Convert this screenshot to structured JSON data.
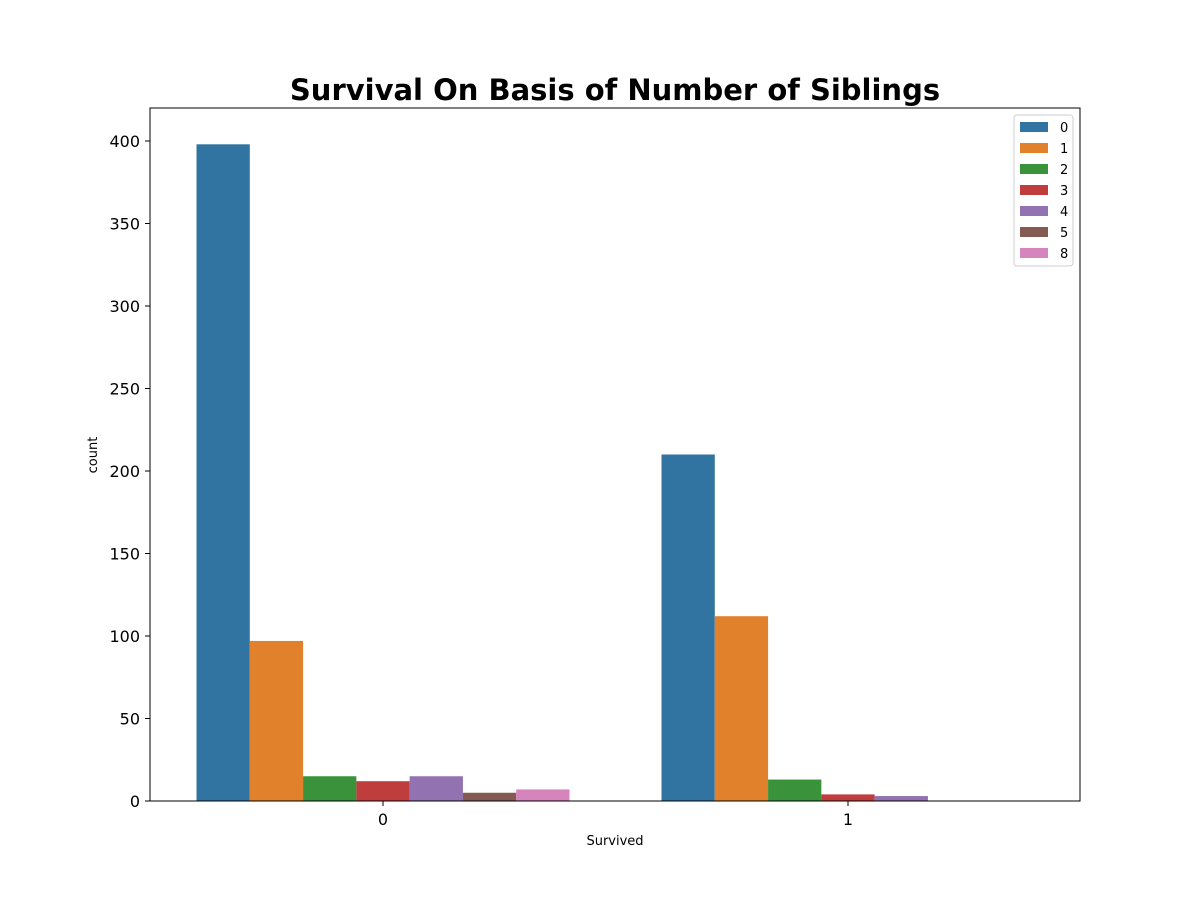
{
  "chart_data": {
    "type": "bar",
    "title": "Survival On Basis of Number of Siblings",
    "xlabel": "Survived",
    "ylabel": "count",
    "categories": [
      "0",
      "1"
    ],
    "ylim": [
      0,
      420
    ],
    "yticks": [
      0,
      50,
      100,
      150,
      200,
      250,
      300,
      350,
      400
    ],
    "grid": false,
    "legend_position": "top-right",
    "series": [
      {
        "name": "0",
        "color": "#3274a1",
        "values": [
          398,
          210
        ]
      },
      {
        "name": "1",
        "color": "#e1812c",
        "values": [
          97,
          112
        ]
      },
      {
        "name": "2",
        "color": "#3a923a",
        "values": [
          15,
          13
        ]
      },
      {
        "name": "3",
        "color": "#c03d3e",
        "values": [
          12,
          4
        ]
      },
      {
        "name": "4",
        "color": "#9372b2",
        "values": [
          15,
          3
        ]
      },
      {
        "name": "5",
        "color": "#845b53",
        "values": [
          5,
          0
        ]
      },
      {
        "name": "8",
        "color": "#d684bd",
        "values": [
          7,
          0
        ]
      }
    ]
  }
}
